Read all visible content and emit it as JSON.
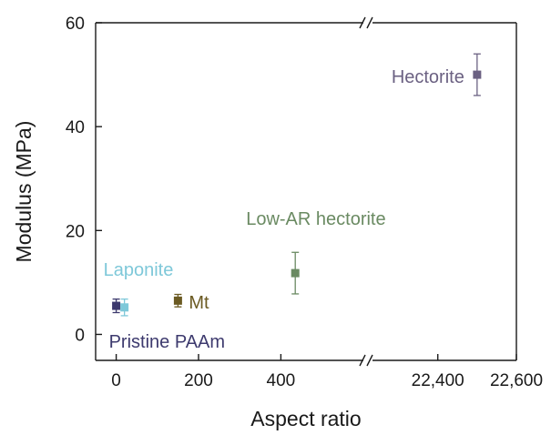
{
  "chart_data": {
    "type": "scatter",
    "title": "",
    "xlabel": "Aspect ratio",
    "ylabel": "Modulus (MPa)",
    "ylim": [
      -5,
      60
    ],
    "yticks": [
      0,
      20,
      40,
      60
    ],
    "x_axis_break": {
      "left_segment": [
        -50,
        585
      ],
      "right_segment": [
        22250,
        22600
      ],
      "ticks": [
        {
          "value": 0,
          "label": "0"
        },
        {
          "value": 200,
          "label": "200"
        },
        {
          "value": 400,
          "label": "400"
        },
        {
          "value": 22400,
          "label": "22,400"
        },
        {
          "value": 22600,
          "label": "22,600"
        }
      ]
    },
    "series": [
      {
        "name": "Pristine PAAm",
        "label": "Pristine PAAm",
        "x": 0,
        "y": 5.5,
        "err": 1.3,
        "color": "#3d3a6e"
      },
      {
        "name": "Laponite",
        "label": "Laponite",
        "x": 20,
        "y": 5.2,
        "err": 1.6,
        "color": "#7ec8d9"
      },
      {
        "name": "Mt",
        "label": "Mt",
        "x": 150,
        "y": 6.5,
        "err": 1.2,
        "color": "#6b5a22"
      },
      {
        "name": "Low-AR hectorite",
        "label": "Low-AR hectorite",
        "x": 435,
        "y": 11.8,
        "err": 4.0,
        "color": "#6a8a62"
      },
      {
        "name": "Hectorite",
        "label": "Hectorite",
        "x": 22500,
        "y": 50,
        "err": 4.0,
        "color": "#6b6182"
      }
    ]
  }
}
